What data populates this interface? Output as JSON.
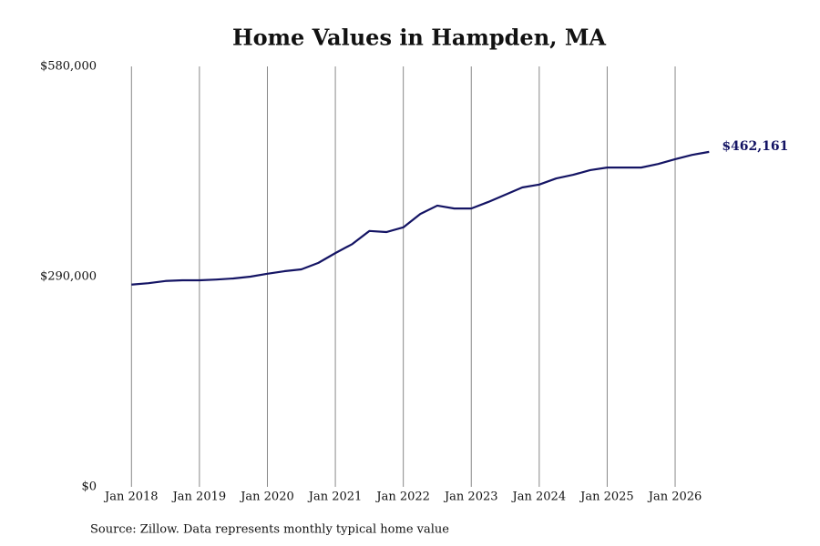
{
  "chart_data": {
    "type": "line",
    "title": "Home Values in Hampden, MA",
    "source": "Source: Zillow. Data represents monthly typical home value",
    "x": [
      "2018-01",
      "2018-04",
      "2018-07",
      "2018-10",
      "2019-01",
      "2019-04",
      "2019-07",
      "2019-10",
      "2020-01",
      "2020-04",
      "2020-07",
      "2020-10",
      "2021-01",
      "2021-04",
      "2021-07",
      "2021-10",
      "2022-01",
      "2022-04",
      "2022-07",
      "2022-10",
      "2023-01",
      "2023-04",
      "2023-07",
      "2023-10",
      "2024-01",
      "2024-04",
      "2024-07",
      "2024-10",
      "2025-01",
      "2025-04",
      "2025-07",
      "2025-10",
      "2026-01",
      "2026-04",
      "2026-07"
    ],
    "series": [
      {
        "name": "Home value",
        "color": "#141464",
        "values": [
          279000,
          281000,
          284000,
          285000,
          285000,
          286000,
          287500,
          290000,
          294000,
          297500,
          300000,
          309000,
          322500,
          335000,
          353000,
          351500,
          358000,
          376500,
          388000,
          384000,
          384000,
          393000,
          403000,
          413000,
          417000,
          425500,
          430500,
          437000,
          440500,
          440500,
          440500,
          445500,
          452000,
          458000,
          462161
        ],
        "value_labels": [
          null,
          null,
          null,
          null,
          null,
          null,
          null,
          null,
          null,
          null,
          null,
          null,
          null,
          null,
          null,
          null,
          null,
          null,
          null,
          null,
          null,
          null,
          null,
          null,
          null,
          null,
          null,
          null,
          null,
          null,
          null,
          null,
          null,
          null,
          "$462,161"
        ]
      }
    ],
    "xlim": [
      "2017-07",
      "2026-12"
    ],
    "xticks": [
      {
        "value": "2018-01",
        "label": "Jan 2018"
      },
      {
        "value": "2019-01",
        "label": "Jan 2019"
      },
      {
        "value": "2020-01",
        "label": "Jan 2020"
      },
      {
        "value": "2021-01",
        "label": "Jan 2021"
      },
      {
        "value": "2022-01",
        "label": "Jan 2022"
      },
      {
        "value": "2023-01",
        "label": "Jan 2023"
      },
      {
        "value": "2024-01",
        "label": "Jan 2024"
      },
      {
        "value": "2025-01",
        "label": "Jan 2025"
      },
      {
        "value": "2026-01",
        "label": "Jan 2026"
      }
    ],
    "ylim": [
      0,
      580000
    ],
    "yticks": [
      {
        "value": 0,
        "label": "$0"
      },
      {
        "value": 290000,
        "label": "$290,000"
      },
      {
        "value": 580000,
        "label": "$580,000"
      }
    ],
    "grid": "x"
  }
}
